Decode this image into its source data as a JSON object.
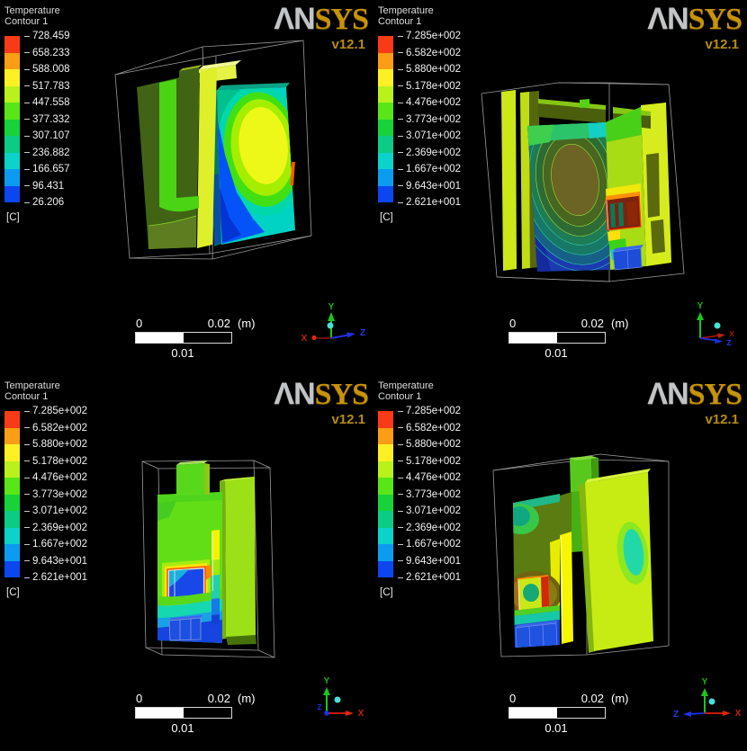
{
  "logo": {
    "part1": "ΛN",
    "part2": "SYS",
    "version": "v12.1"
  },
  "legend": {
    "title_line1": "Temperature",
    "title_line2": "Contour 1",
    "unit": "[C]"
  },
  "scalebar": {
    "zero": "0",
    "max": "0.02",
    "unit": "(m)",
    "mid": "0.01"
  },
  "axes": {
    "x": "X",
    "y": "Y",
    "z": "Z"
  },
  "colorbar_colors": [
    "#f83a16",
    "#fb9d15",
    "#fdf123",
    "#b8f21a",
    "#59e617",
    "#16d339",
    "#0ccb86",
    "#0bd3c9",
    "#0b9cf2",
    "#0b46f0"
  ],
  "quadrants": [
    {
      "name": "top-left",
      "legend_values": [
        "728.459",
        "658.233",
        "588.008",
        "517.783",
        "447.558",
        "377.332",
        "307.107",
        "236.882",
        "166.657",
        "96.431",
        "26.206"
      ]
    },
    {
      "name": "top-right",
      "legend_values": [
        "7.285e+002",
        "6.582e+002",
        "5.880e+002",
        "5.178e+002",
        "4.476e+002",
        "3.773e+002",
        "3.071e+002",
        "2.369e+002",
        "1.667e+002",
        "9.643e+001",
        "2.621e+001"
      ]
    },
    {
      "name": "bottom-left",
      "legend_values": [
        "7.285e+002",
        "6.582e+002",
        "5.880e+002",
        "5.178e+002",
        "4.476e+002",
        "3.773e+002",
        "3.071e+002",
        "2.369e+002",
        "1.667e+002",
        "9.643e+001",
        "2.621e+001"
      ]
    },
    {
      "name": "bottom-right",
      "legend_values": [
        "7.285e+002",
        "6.582e+002",
        "5.880e+002",
        "5.178e+002",
        "4.476e+002",
        "3.773e+002",
        "3.071e+002",
        "2.369e+002",
        "1.667e+002",
        "9.643e+001",
        "2.621e+001"
      ]
    }
  ]
}
